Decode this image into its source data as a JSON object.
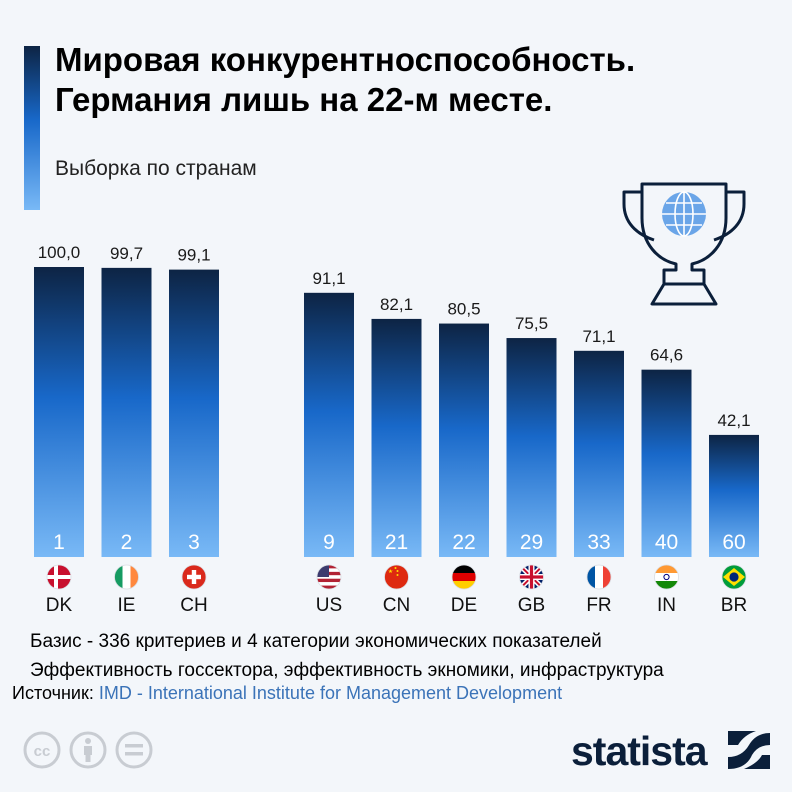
{
  "header": {
    "title_line1": "Мировая конкурентноспособность.",
    "title_line2": "Германия лишь на 22-м месте.",
    "subtitle": "Выборка по странам"
  },
  "chart_data": {
    "type": "bar",
    "categories": [
      "DK",
      "IE",
      "CH",
      "US",
      "CN",
      "DE",
      "GB",
      "FR",
      "IN",
      "BR"
    ],
    "values": [
      100.0,
      99.7,
      99.1,
      91.1,
      82.1,
      80.5,
      75.5,
      71.1,
      64.6,
      42.1
    ],
    "value_labels": [
      "100,0",
      "99,7",
      "99,1",
      "91,1",
      "82,1",
      "80,5",
      "75,5",
      "71,1",
      "64,6",
      "42,1"
    ],
    "ranks": [
      "1",
      "2",
      "3",
      "9",
      "21",
      "22",
      "29",
      "33",
      "40",
      "60"
    ],
    "flags": [
      "flag-dk",
      "flag-ie",
      "flag-ch",
      "flag-us",
      "flag-cn",
      "flag-de",
      "flag-gb",
      "flag-fr",
      "flag-in",
      "flag-br"
    ],
    "groups": [
      [
        "DK",
        "IE",
        "CH"
      ],
      [
        "US",
        "CN",
        "DE",
        "GB",
        "FR",
        "IN",
        "BR"
      ]
    ],
    "ylim": [
      0,
      100
    ],
    "grid": false,
    "legend": "none",
    "colors": {
      "bar_top": "#0d2444",
      "bar_mid": "#1868c9",
      "bar_bottom": "#79b9f6",
      "rank_text": "#ffffff",
      "value_text": "#1a1a1a"
    }
  },
  "footer": {
    "note_line1": "Базис - 336 критериев и 4 категории экономических показателей",
    "note_line2": "Эффективность госсектора, эффективность экномики, инфраструктура",
    "source_label": "Источник:",
    "source_value": "IMD - International Institute for Management Development",
    "logo": "statista"
  },
  "icons": [
    "trophy-globe-icon",
    "cc-icon",
    "by-icon",
    "nd-icon",
    "statista-logo-icon"
  ]
}
